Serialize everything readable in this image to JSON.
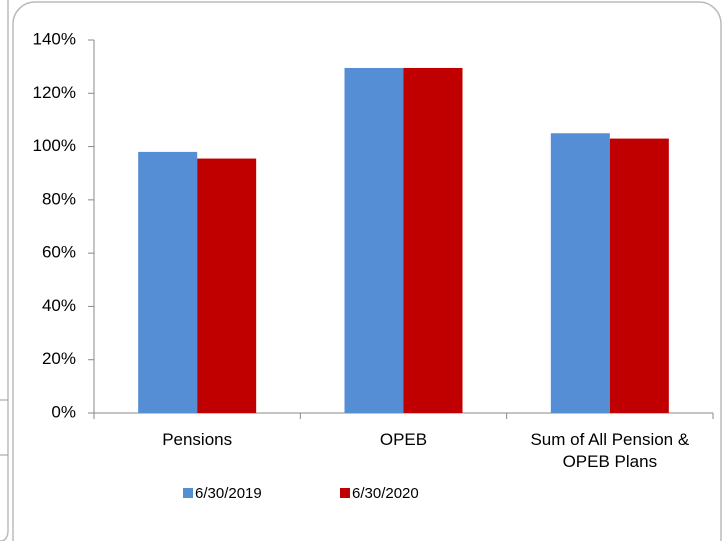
{
  "chart_data": {
    "type": "bar",
    "categories": [
      "Pensions",
      "OPEB",
      "Sum of All Pension & OPEB Plans"
    ],
    "series": [
      {
        "name": "6/30/2019",
        "color": "#558ed5",
        "values": [
          98,
          129.5,
          105
        ]
      },
      {
        "name": "6/30/2020",
        "color": "#c00000",
        "values": [
          95.5,
          129.5,
          103
        ]
      }
    ],
    "ylim": [
      0,
      140
    ],
    "yticks": [
      {
        "value": 0,
        "label": "0%"
      },
      {
        "value": 20,
        "label": "20%"
      },
      {
        "value": 40,
        "label": "40%"
      },
      {
        "value": 60,
        "label": "60%"
      },
      {
        "value": 80,
        "label": "80%"
      },
      {
        "value": 100,
        "label": "100%"
      },
      {
        "value": 120,
        "label": "120%"
      },
      {
        "value": 140,
        "label": "140%"
      }
    ],
    "grid": false,
    "legend": "bottom"
  }
}
